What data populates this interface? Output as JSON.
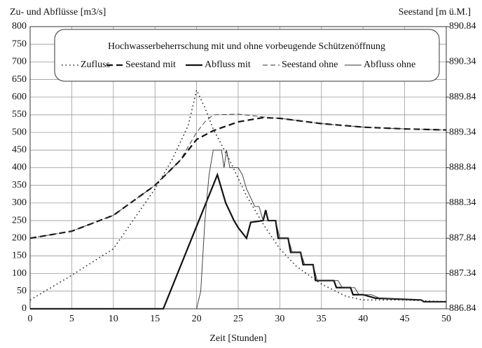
{
  "chart_data": {
    "type": "line",
    "legend_title": "Hochwasserbeherrschung mit und ohne vorbeugende Schützenöffnung",
    "ylabel": "Zu- und Abflüsse  [m3/s]",
    "y2label": "Seestand  [m ü.M.]",
    "xlabel": "Zeit  [Stunden]",
    "xlim": [
      0,
      50
    ],
    "xticks": [
      0,
      5,
      10,
      15,
      20,
      25,
      30,
      35,
      40,
      45,
      50
    ],
    "ylim": [
      0,
      800
    ],
    "yticks": [
      0,
      50,
      100,
      150,
      200,
      250,
      300,
      350,
      400,
      450,
      500,
      550,
      600,
      650,
      700,
      750,
      800
    ],
    "y2lim": [
      886.84,
      890.84
    ],
    "y2ticks": [
      886.84,
      887.34,
      887.84,
      888.34,
      888.84,
      889.34,
      889.84,
      890.34,
      890.84
    ],
    "grid": true,
    "series": [
      {
        "name": "Zufluss",
        "color": "#222",
        "style": "dotted",
        "x": [
          0,
          5,
          10,
          15,
          17,
          19,
          20,
          21,
          22,
          24,
          26,
          28,
          30,
          32,
          35,
          38,
          40,
          45,
          50
        ],
        "values": [
          25,
          95,
          170,
          340,
          420,
          520,
          620,
          570,
          510,
          420,
          320,
          240,
          170,
          120,
          70,
          35,
          25,
          25,
          20
        ]
      },
      {
        "name": "Seestand mit",
        "color": "#111",
        "style": "dashed-thick",
        "axis": "y2",
        "x": [
          0,
          5,
          10,
          15,
          18,
          20,
          22,
          25,
          28,
          30,
          35,
          40,
          45,
          50
        ],
        "values": [
          887.84,
          887.94,
          888.165,
          888.59,
          888.94,
          889.24,
          889.365,
          889.49,
          889.55,
          889.54,
          889.465,
          889.415,
          889.39,
          889.375
        ]
      },
      {
        "name": "Abfluss mit",
        "color": "#111",
        "style": "solid-thick",
        "x": [
          0,
          16,
          22.5,
          23.5,
          24.5,
          25,
          26,
          26.5,
          28,
          28.3,
          28.6,
          29.5,
          29.8,
          31,
          31.3,
          32.5,
          32.8,
          34,
          34.3,
          36.5,
          36.8,
          38.5,
          38.8,
          40,
          41.5,
          47,
          47.3,
          50
        ],
        "values": [
          0,
          0,
          380,
          300,
          250,
          230,
          200,
          245,
          250,
          280,
          250,
          250,
          200,
          200,
          160,
          160,
          125,
          125,
          80,
          80,
          60,
          60,
          40,
          40,
          30,
          25,
          20,
          20
        ]
      },
      {
        "name": "Seestand ohne",
        "color": "#333",
        "style": "dashed-thin",
        "axis": "y2",
        "x": [
          0,
          5,
          10,
          15,
          18,
          20,
          21,
          22,
          25,
          28,
          30,
          35,
          40,
          45,
          50
        ],
        "values": [
          887.84,
          887.94,
          888.165,
          888.59,
          888.94,
          889.34,
          889.49,
          889.59,
          889.6,
          889.56,
          889.54,
          889.465,
          889.415,
          889.39,
          889.375
        ]
      },
      {
        "name": "Abfluss ohne",
        "color": "#333",
        "style": "solid-thin",
        "x": [
          0,
          20,
          20.5,
          21,
          21.5,
          22,
          22.5,
          23,
          23.3,
          23.6,
          24,
          25,
          25.5,
          26,
          27,
          27.5,
          28,
          29.5,
          30,
          31,
          31.5,
          32.5,
          33,
          34,
          34.5,
          37,
          37.5,
          39,
          39.5,
          41,
          42,
          47,
          47.5,
          50
        ],
        "values": [
          0,
          0,
          50,
          250,
          380,
          450,
          450,
          450,
          400,
          450,
          400,
          400,
          380,
          340,
          290,
          290,
          250,
          250,
          200,
          200,
          160,
          160,
          125,
          125,
          80,
          80,
          60,
          60,
          40,
          40,
          30,
          25,
          20,
          20
        ]
      }
    ]
  }
}
